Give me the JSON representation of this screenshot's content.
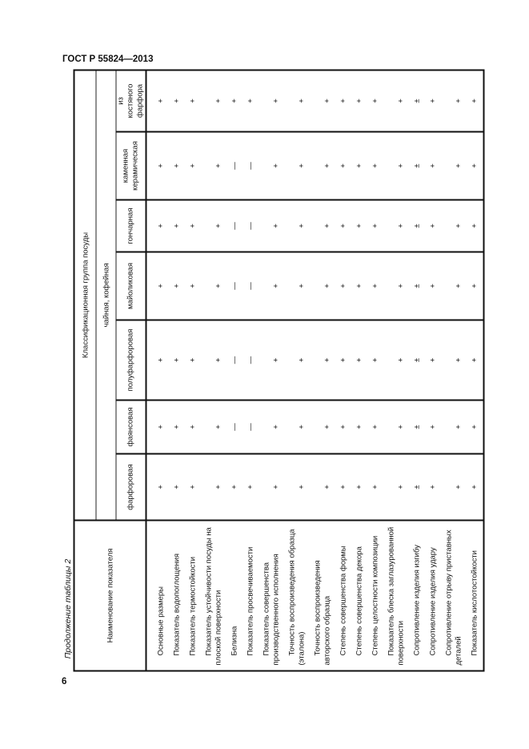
{
  "header": {
    "doc_title": "ГОСТ Р 55824—2013",
    "continuation": "Продолжение таблицы 2",
    "page_number": "6"
  },
  "table": {
    "name_header": "Наименование показателя",
    "group_header": "Классификационная группа посуды",
    "subgroup_header": "чайная, кофейная",
    "indicators": [
      "Основные размеры",
      "Показатель водопоглощения",
      "Показатель термостойкости",
      "Показатель устойчивости посуды на плоской поверхности",
      "Белизна",
      "Показатель просвечиваемости",
      "Показатель совершенства производственного исполнения",
      "Точность воспроизведения образца (эталона)",
      "Точность воспроизведения авторского образца",
      "Степень совершенства формы",
      "Степень совершенства декора",
      "Степень целостности композиции",
      "Показатель блеска заглазурованной поверхности",
      "Сопротивление изделия изгибу",
      "Сопротивление изделия удару",
      "Сопротивление отрыву приставных деталей",
      "Показатель кислотостойкости"
    ],
    "columns": [
      {
        "label": "фарфоровая",
        "values": [
          "+",
          "+",
          "+",
          "+",
          "+",
          "+",
          "+",
          "+",
          "+",
          "+",
          "+",
          "+",
          "+",
          "±",
          "+",
          "+",
          "+"
        ]
      },
      {
        "label": "фаянсовая",
        "values": [
          "+",
          "+",
          "+",
          "+",
          "—",
          "—",
          "+",
          "+",
          "+",
          "+",
          "+",
          "+",
          "+",
          "±",
          "+",
          "+",
          "+"
        ]
      },
      {
        "label": "полуфарфоровая",
        "values": [
          "+",
          "+",
          "+",
          "+",
          "—",
          "—",
          "+",
          "+",
          "+",
          "+",
          "+",
          "+",
          "+",
          "±",
          "+",
          "+",
          "+"
        ]
      },
      {
        "label": "майоликовая",
        "values": [
          "+",
          "+",
          "+",
          "+",
          "—",
          "—",
          "+",
          "+",
          "+",
          "+",
          "+",
          "+",
          "+",
          "±",
          "+",
          "+",
          "+"
        ]
      },
      {
        "label": "гончарная",
        "values": [
          "+",
          "+",
          "+",
          "+",
          "—",
          "—",
          "+",
          "+",
          "+",
          "+",
          "+",
          "+",
          "+",
          "±",
          "+",
          "+",
          "+"
        ]
      },
      {
        "label": "каменная керамическая",
        "values": [
          "+",
          "+",
          "+",
          "+",
          "—",
          "—",
          "+",
          "+",
          "+",
          "+",
          "+",
          "+",
          "+",
          "±",
          "+",
          "+",
          "+"
        ]
      },
      {
        "label": "из костяного фарфора",
        "values": [
          "+",
          "+",
          "+",
          "+",
          "+",
          "+",
          "+",
          "+",
          "+",
          "+",
          "+",
          "+",
          "+",
          "±",
          "+",
          "+",
          "+"
        ]
      }
    ]
  }
}
